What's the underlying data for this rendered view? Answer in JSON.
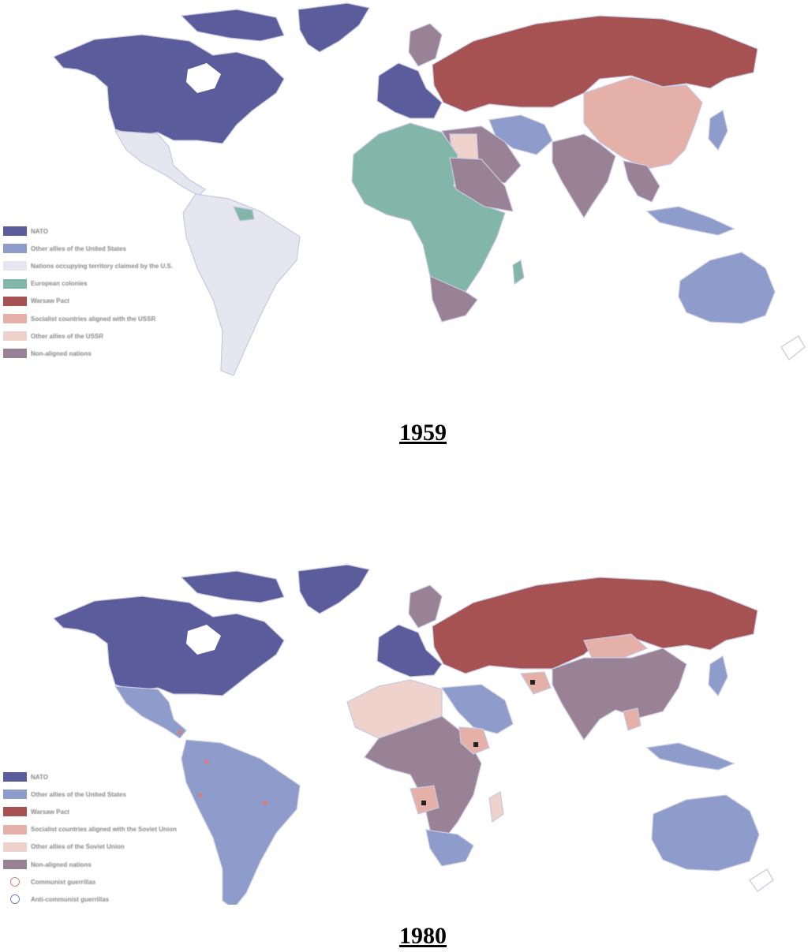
{
  "maps": [
    {
      "year": "1959",
      "legend": [
        {
          "label": "NATO",
          "color": "#5a5c9c"
        },
        {
          "label": "Other allies of the United States",
          "color": "#8e9ccc"
        },
        {
          "label": "Nations occupying territory claimed by the U.S.",
          "color": "#e6e6f0"
        },
        {
          "label": "European colonies",
          "color": "#82b6a8"
        },
        {
          "label": "Warsaw Pact",
          "color": "#a65252"
        },
        {
          "label": "Socialist countries aligned with the USSR",
          "color": "#e4b0a8"
        },
        {
          "label": "Other allies of the USSR",
          "color": "#f0d2cc"
        },
        {
          "label": "Non-aligned nations",
          "color": "#9a8296"
        }
      ]
    },
    {
      "year": "1980",
      "legend": [
        {
          "label": "NATO",
          "color": "#5a5c9c"
        },
        {
          "label": "Other allies of the United States",
          "color": "#8e9ccc"
        },
        {
          "label": "Warsaw Pact",
          "color": "#a65252"
        },
        {
          "label": "Socialist countries aligned with the Soviet Union",
          "color": "#e4b0a8"
        },
        {
          "label": "Other allies of the Soviet Union",
          "color": "#f0d2cc"
        },
        {
          "label": "Non-aligned nations",
          "color": "#9a8296"
        },
        {
          "label": "Communist guerrillas",
          "color": "#d08080",
          "symbol": "circle"
        },
        {
          "label": "Anti-communist guerrillas",
          "color": "#7a80c0",
          "symbol": "circle"
        }
      ]
    }
  ]
}
